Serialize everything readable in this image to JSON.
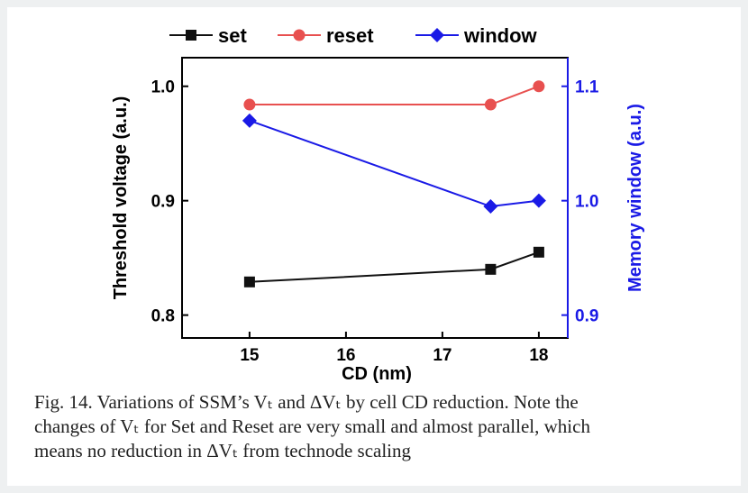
{
  "chart_data": {
    "type": "line",
    "x": [
      15,
      17.5,
      18
    ],
    "xlabel": "CD (nm)",
    "xlim": [
      14.3,
      18.3
    ],
    "xticks": [
      15,
      16,
      17,
      18
    ],
    "ylabel": "Threshold voltage (a.u.)",
    "ylim": [
      0.78,
      1.025
    ],
    "yticks": [
      "0.8",
      "0.9",
      "1.0"
    ],
    "y2label": "Memory window (a.u.)",
    "y2lim": [
      0.88,
      1.125
    ],
    "y2ticks": [
      "0.9",
      "1.0",
      "1.1"
    ],
    "grid": false,
    "legend_position": "top",
    "series": [
      {
        "name": "set",
        "axis": "left",
        "marker": "square",
        "color": "#111111",
        "values": [
          0.829,
          0.84,
          0.855
        ]
      },
      {
        "name": "reset",
        "axis": "left",
        "marker": "circle",
        "color": "#e8504f",
        "values": [
          0.984,
          0.984,
          1.0
        ]
      },
      {
        "name": "window",
        "axis": "right",
        "marker": "diamond",
        "color": "#1a1ae6",
        "values": [
          1.07,
          0.995,
          1.0
        ]
      }
    ]
  },
  "caption": {
    "line1": "Fig. 14. Variations of SSM’s Vₜ and ΔVₜ by cell CD reduction. Note the",
    "line2": "changes of Vₜ for Set and Reset are very small and almost parallel, which",
    "line3": "means no reduction in ΔVₜ from technode scaling"
  }
}
